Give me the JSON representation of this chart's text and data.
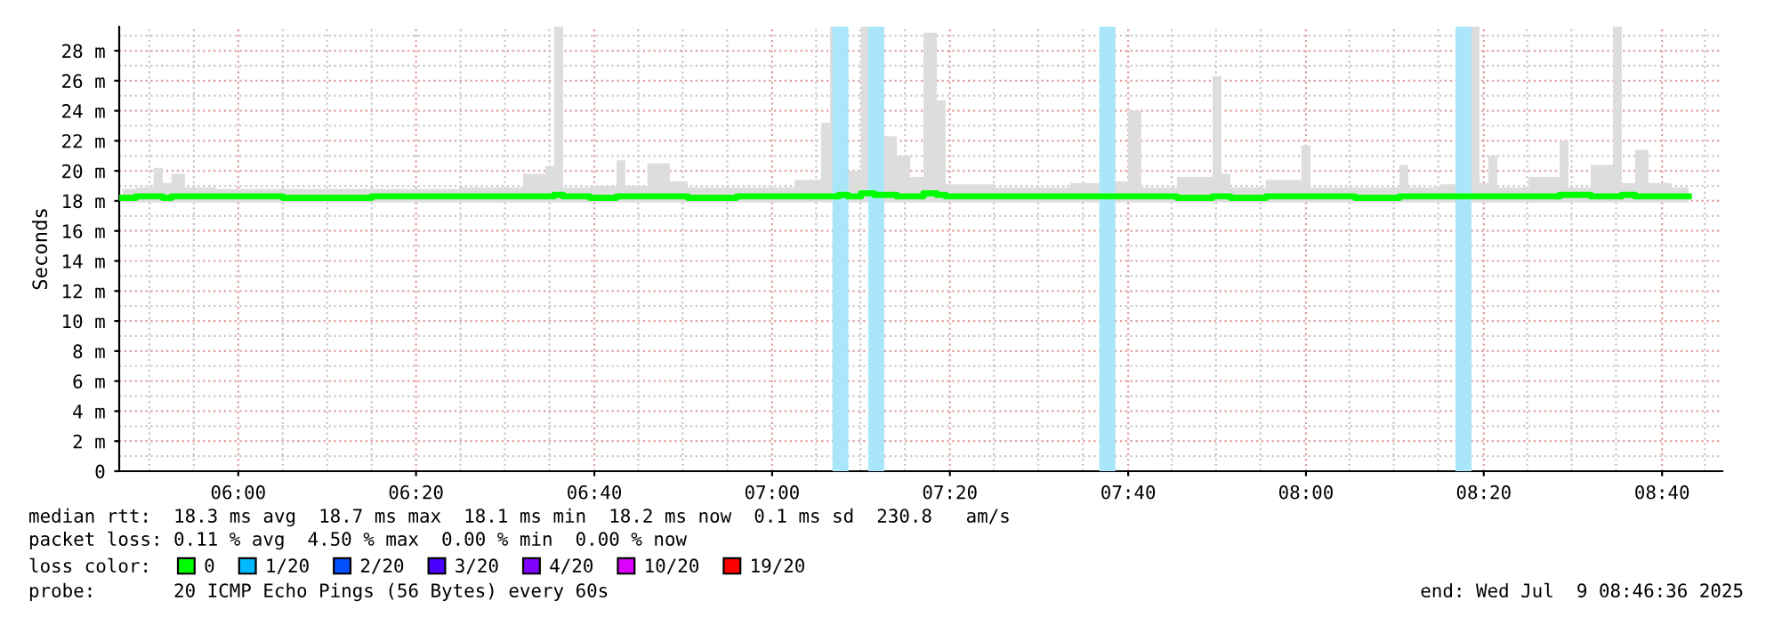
{
  "chart_data": {
    "type": "step",
    "ylabel": "Seconds",
    "x": [
      5.783,
      5.833,
      5.85,
      5.867,
      5.883,
      5.917,
      6,
      6.167,
      6.333,
      6.5,
      6.567,
      6.583,
      6.6,
      6.617,
      6.7,
      6.717,
      6.733,
      6.8,
      6.817,
      6.867,
      7,
      7.083,
      7.1,
      7.117,
      7.133,
      7.15,
      7.183,
      7.2,
      7.217,
      7.25,
      7.267,
      7.3,
      7.317,
      7.333,
      7.5,
      7.617,
      7.633,
      7.65,
      7.683,
      7.7,
      7.817,
      7.833,
      7.85,
      7.867,
      7.983,
      8,
      8.017,
      8.167,
      8.183,
      8.2,
      8.3,
      8.317,
      8.333,
      8.35,
      8.367,
      8.467,
      8.483,
      8.5,
      8.567,
      8.583,
      8.6,
      8.633,
      8.65,
      8.717
    ],
    "series": [
      {
        "name": "0",
        "color": "#00ff00",
        "values": [
          18.2,
          18.3,
          18.3,
          18.2,
          18.3,
          18.3,
          18.3,
          18.2,
          18.3,
          18.3,
          18.3,
          18.3,
          18.4,
          18.3,
          18.2,
          18.3,
          18.3,
          18.3,
          18.3,
          18.2,
          18.3,
          18.3,
          18.3,
          18.3,
          18.4,
          18.3,
          18.5,
          18.4,
          18.4,
          18.3,
          18.3,
          18.5,
          18.4,
          18.3,
          18.3,
          18.3,
          18.3,
          18.3,
          18.3,
          18.3,
          18.2,
          18.3,
          18.3,
          18.2,
          18.3,
          18.3,
          18.3,
          18.2,
          18.3,
          18.3,
          18.3,
          18.3,
          18.3,
          18.3,
          18.3,
          18.3,
          18.4,
          18.4,
          18.3,
          18.3,
          18.4,
          18.3,
          18.3,
          18.3
        ],
        "lower": [
          17.9,
          17.9,
          17.9,
          17.9,
          17.9,
          17.9,
          17.9,
          17.9,
          17.9,
          17.9,
          17.9,
          17.9,
          17.9,
          17.9,
          17.9,
          17.9,
          17.9,
          17.9,
          17.9,
          17.9,
          17.9,
          17.9,
          17.9,
          17.9,
          17.9,
          17.9,
          17.9,
          17.9,
          17.9,
          17.9,
          17.9,
          17.9,
          17.9,
          17.9,
          17.9,
          17.9,
          17.9,
          17.9,
          17.9,
          17.9,
          17.9,
          17.9,
          17.9,
          17.9,
          17.9,
          17.9,
          17.9,
          17.9,
          17.9,
          17.9,
          17.9,
          17.9,
          17.9,
          17.9,
          17.9,
          17.9,
          17.9,
          17.9,
          17.9,
          17.9,
          17.9,
          17.9,
          17.9,
          17.9
        ],
        "upper": [
          18.8,
          18.9,
          20.2,
          19.2,
          19.8,
          18.9,
          18.8,
          18.8,
          18.8,
          18.9,
          19.8,
          20.3,
          29.6,
          18.9,
          19.0,
          20.7,
          19.0,
          20.5,
          19.3,
          18.9,
          18.9,
          19.4,
          23.2,
          29.6,
          29.6,
          20.0,
          29.6,
          29.6,
          22.3,
          21.0,
          19.6,
          29.2,
          24.7,
          19.1,
          18.9,
          19.2,
          29.6,
          19.3,
          24.0,
          18.9,
          19.6,
          26.3,
          19.8,
          18.9,
          19.4,
          21.7,
          18.9,
          18.9,
          20.4,
          18.9,
          19.1,
          29.6,
          19.2,
          21.0,
          18.9,
          19.6,
          22.0,
          18.9,
          20.4,
          29.6,
          19.2,
          21.4,
          19.2,
          18.9
        ]
      },
      {
        "name": "1/20",
        "color": "#00b8ff",
        "values": [
          null,
          null,
          null,
          null,
          null,
          null,
          null,
          null,
          null,
          null,
          null,
          null,
          null,
          null,
          null,
          null,
          null,
          null,
          null,
          null,
          null,
          null,
          null,
          null,
          null,
          null,
          null,
          null,
          null,
          null,
          null,
          null,
          null,
          null,
          null,
          null,
          null,
          null,
          null,
          null,
          null,
          null,
          null,
          null,
          null,
          null,
          null,
          null,
          null,
          null,
          null,
          null,
          null,
          null,
          null,
          null,
          null,
          null,
          null,
          null,
          null,
          null,
          null,
          null
        ]
      },
      {
        "name": "2/20",
        "color": "#0050ff",
        "values": [
          null,
          null,
          null,
          null,
          null,
          null,
          null,
          null,
          null,
          null,
          null,
          null,
          null,
          null,
          null,
          null,
          null,
          null,
          null,
          null,
          null,
          null,
          null,
          null,
          null,
          null,
          null,
          null,
          null,
          null,
          null,
          null,
          null,
          null,
          null,
          null,
          null,
          null,
          null,
          null,
          null,
          null,
          null,
          null,
          null,
          null,
          null,
          null,
          null,
          null,
          null,
          null,
          null,
          null,
          null,
          null,
          null,
          null,
          null,
          null,
          null,
          null,
          null,
          null
        ]
      },
      {
        "name": "3/20",
        "color": "#4b00ff",
        "values": [
          null,
          null,
          null,
          null,
          null,
          null,
          null,
          null,
          null,
          null,
          null,
          null,
          null,
          null,
          null,
          null,
          null,
          null,
          null,
          null,
          null,
          null,
          null,
          null,
          null,
          null,
          null,
          null,
          null,
          null,
          null,
          null,
          null,
          null,
          null,
          null,
          null,
          null,
          null,
          null,
          null,
          null,
          null,
          null,
          null,
          null,
          null,
          null,
          null,
          null,
          null,
          null,
          null,
          null,
          null,
          null,
          null,
          null,
          null,
          null,
          null,
          null,
          null,
          null
        ]
      },
      {
        "name": "4/20",
        "color": "#7e00ff",
        "values": [
          null,
          null,
          null,
          null,
          null,
          null,
          null,
          null,
          null,
          null,
          null,
          null,
          null,
          null,
          null,
          null,
          null,
          null,
          null,
          null,
          null,
          null,
          null,
          null,
          null,
          null,
          null,
          null,
          null,
          null,
          null,
          null,
          null,
          null,
          null,
          null,
          null,
          null,
          null,
          null,
          null,
          null,
          null,
          null,
          null,
          null,
          null,
          null,
          null,
          null,
          null,
          null,
          null,
          null,
          null,
          null,
          null,
          null,
          null,
          null,
          null,
          null,
          null,
          null
        ]
      },
      {
        "name": "10/20",
        "color": "#dd00ff",
        "values": [
          null,
          null,
          null,
          null,
          null,
          null,
          null,
          null,
          null,
          null,
          null,
          null,
          null,
          null,
          null,
          null,
          null,
          null,
          null,
          null,
          null,
          null,
          null,
          null,
          null,
          null,
          null,
          null,
          null,
          null,
          null,
          null,
          null,
          null,
          null,
          null,
          null,
          null,
          null,
          null,
          null,
          null,
          null,
          null,
          null,
          null,
          null,
          null,
          null,
          null,
          null,
          null,
          null,
          null,
          null,
          null,
          null,
          null,
          null,
          null,
          null,
          null,
          null,
          null
        ]
      },
      {
        "name": "19/20",
        "color": "#ff0000",
        "values": [
          null,
          null,
          null,
          null,
          null,
          null,
          null,
          null,
          null,
          null,
          null,
          null,
          null,
          null,
          null,
          null,
          null,
          null,
          null,
          null,
          null,
          null,
          null,
          null,
          null,
          null,
          null,
          null,
          null,
          null,
          null,
          null,
          null,
          null,
          null,
          null,
          null,
          null,
          null,
          null,
          null,
          null,
          null,
          null,
          null,
          null,
          null,
          null,
          null,
          null,
          null,
          null,
          null,
          null,
          null,
          null,
          null,
          null,
          null,
          null,
          null,
          null,
          null,
          null
        ]
      }
    ],
    "bands": [
      {
        "axis": "x",
        "from": 7.113,
        "to": 7.143,
        "color": "#aae6fa"
      },
      {
        "axis": "x",
        "from": 7.18,
        "to": 7.21,
        "color": "#aae6fa"
      },
      {
        "axis": "x",
        "from": 7.613,
        "to": 7.643,
        "color": "#aae6fa"
      },
      {
        "axis": "x",
        "from": 8.28,
        "to": 8.31,
        "color": "#aae6fa"
      }
    ],
    "xlim": [
      5.777,
      8.78
    ],
    "xticks": [
      {
        "value": 6,
        "label": "06:00"
      },
      {
        "value": 6.333,
        "label": "06:20"
      },
      {
        "value": 6.667,
        "label": "06:40"
      },
      {
        "value": 7,
        "label": "07:00"
      },
      {
        "value": 7.333,
        "label": "07:20"
      },
      {
        "value": 7.667,
        "label": "07:40"
      },
      {
        "value": 8,
        "label": "08:00"
      },
      {
        "value": 8.333,
        "label": "08:20"
      },
      {
        "value": 8.667,
        "label": "08:40"
      }
    ],
    "ylim": [
      0,
      29.6
    ],
    "yticks": [
      0,
      {
        "value": 2,
        "label": "2 m"
      },
      {
        "value": 4,
        "label": "4 m"
      },
      {
        "value": 6,
        "label": "6 m"
      },
      {
        "value": 8,
        "label": "8 m"
      },
      {
        "value": 10,
        "label": "10 m"
      },
      {
        "value": 12,
        "label": "12 m"
      },
      {
        "value": 14,
        "label": "14 m"
      },
      {
        "value": 16,
        "label": "16 m"
      },
      {
        "value": 18,
        "label": "18 m"
      },
      {
        "value": 20,
        "label": "20 m"
      },
      {
        "value": 22,
        "label": "22 m"
      },
      {
        "value": 24,
        "label": "24 m"
      },
      {
        "value": 26,
        "label": "26 m"
      },
      {
        "value": 28,
        "label": "28 m"
      }
    ],
    "grid": true,
    "legend": "bottom",
    "legend_title": "loss color:",
    "annotations": [
      "median rtt:  18.3 ms avg  18.7 ms max  18.1 ms min  18.2 ms now  0.1 ms sd  230.8   am/s",
      "packet loss: 0.11 % avg  4.50 % max  0.00 % min  0.00 % now",
      "probe:       20 ICMP Echo Pings (56 Bytes) every 60s",
      "end: Wed Jul  9 08:46:36 2025"
    ]
  }
}
